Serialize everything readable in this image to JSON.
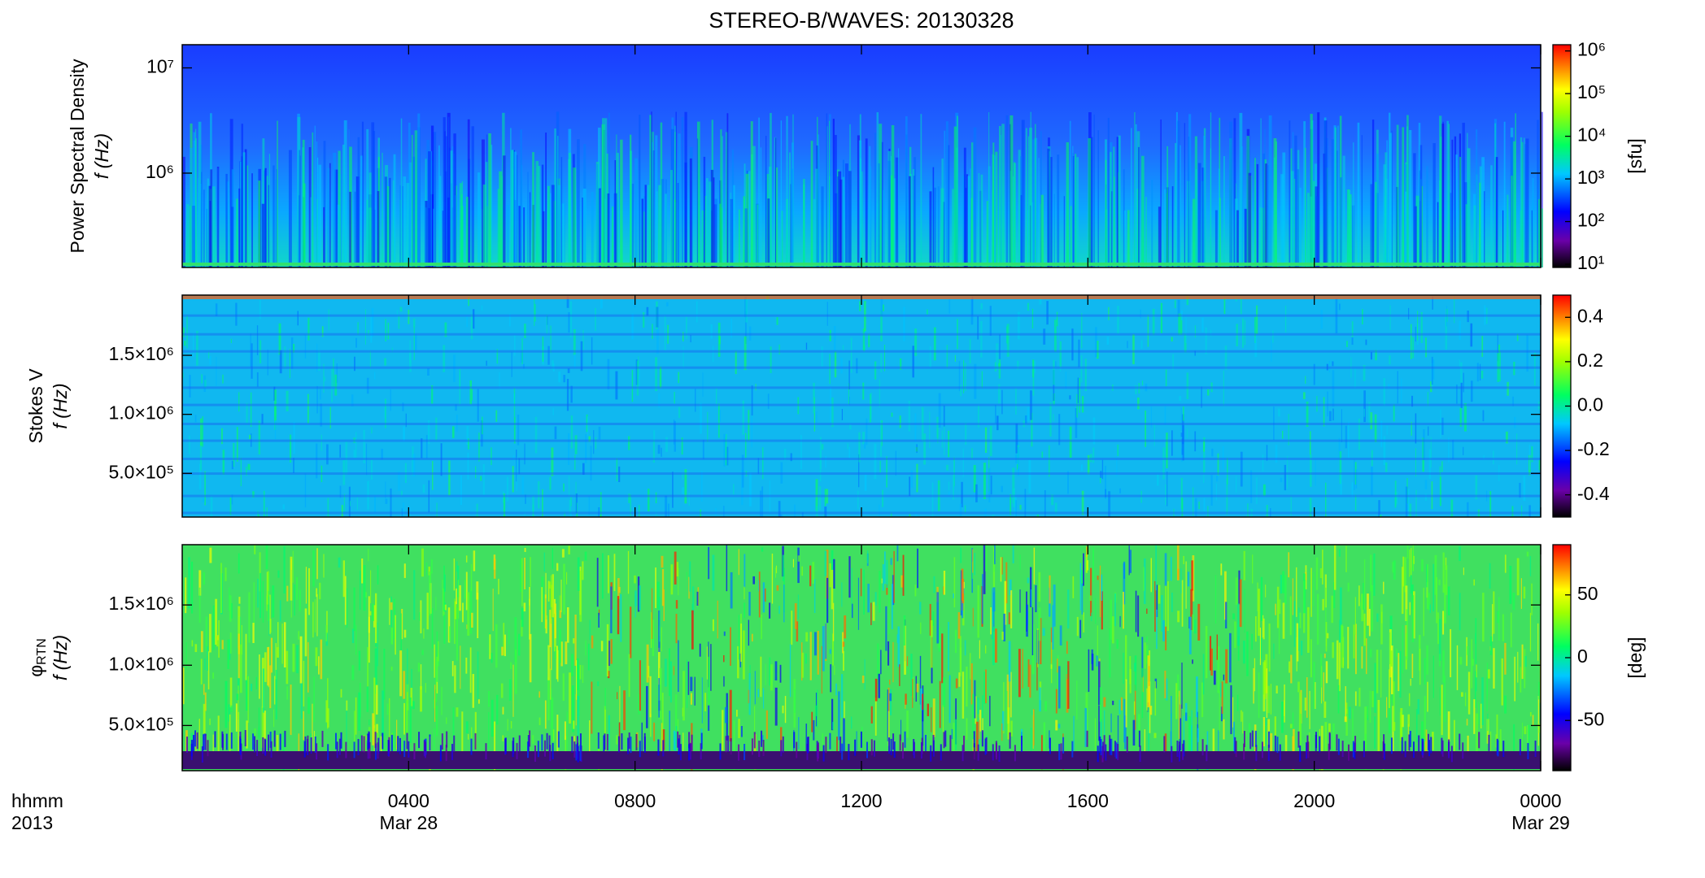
{
  "chart_data": [
    {
      "type": "spectrogram",
      "title": "STEREO-B/WAVES: 20130328",
      "ylabel": [
        "Power Spectral Density",
        "f (Hz)"
      ],
      "ylog": true,
      "ylim": [
        127000,
        16600000
      ],
      "yticks": [
        {
          "value": 1000000,
          "label": "10⁶"
        },
        {
          "value": 10000000,
          "label": "10⁷"
        }
      ],
      "xlim": [
        0,
        24
      ],
      "clim": [
        8.4,
        1400000
      ],
      "clog": true,
      "clabel": "[sfu]",
      "cticks": [
        {
          "value": 10,
          "label": "10¹"
        },
        {
          "value": 100,
          "label": "10²"
        },
        {
          "value": 1000,
          "label": "10³"
        },
        {
          "value": 10000,
          "label": "10⁴"
        },
        {
          "value": 100000,
          "label": "10⁵"
        },
        {
          "value": 1000000,
          "label": "10⁶"
        }
      ]
    },
    {
      "type": "spectrogram",
      "ylabel": [
        "Stokes V",
        "f (Hz)"
      ],
      "ylog": false,
      "ylim": [
        130000,
        2010000
      ],
      "yticks": [
        {
          "value": 500000,
          "label": "5.0×10⁵"
        },
        {
          "value": 1000000,
          "label": "1.0×10⁶"
        },
        {
          "value": 1500000,
          "label": "1.5×10⁶"
        }
      ],
      "xlim": [
        0,
        24
      ],
      "clim": [
        -0.5,
        0.5
      ],
      "clog": false,
      "cticks": [
        -0.4,
        -0.2,
        {
          "value": 0,
          "label": "0.0"
        },
        0.2,
        0.4
      ]
    },
    {
      "type": "spectrogram",
      "ylabel": [
        [
          "φ",
          "RTN"
        ],
        "f (Hz)"
      ],
      "ylog": false,
      "ylim": [
        125000,
        2000000
      ],
      "yticks": [
        {
          "value": 500000,
          "label": "5.0×10⁵"
        },
        {
          "value": 1000000,
          "label": "1.0×10⁶"
        },
        {
          "value": 1500000,
          "label": "1.5×10⁶"
        }
      ],
      "xlim": [
        0,
        24
      ],
      "xticks": [
        {
          "value": 4,
          "label": "0400"
        },
        {
          "value": 8,
          "label": "0800"
        },
        {
          "value": 12,
          "label": "1200"
        },
        {
          "value": 16,
          "label": "1600"
        },
        {
          "value": 20,
          "label": "2000"
        },
        {
          "value": 24,
          "label": "0000"
        }
      ],
      "xdates": [
        {
          "value": 4,
          "label": "Mar 28"
        },
        {
          "value": 24,
          "label": "Mar 29"
        }
      ],
      "xlabel": [
        "hhmm",
        "2013"
      ],
      "clim": [
        -90,
        90
      ],
      "clog": false,
      "clabel": "[deg]",
      "cticks": [
        -50,
        0,
        50
      ]
    }
  ]
}
